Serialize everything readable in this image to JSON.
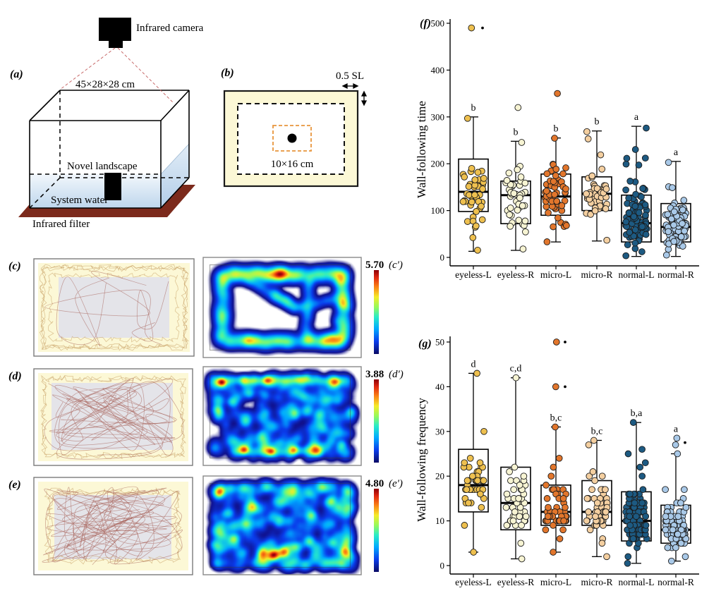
{
  "panel_a": {
    "label": "(a)",
    "camera_label": "Infrared camera",
    "tank_dimensions": "45×28×28 cm",
    "landscape_label": "Novel landscape",
    "water_label": "System water",
    "filter_label": "Infrared filter"
  },
  "panel_b": {
    "label": "(b)",
    "wall_margin_label": "0.5 SL",
    "center_zone_label": "10×16 cm"
  },
  "trajectory_panels": [
    {
      "label": "(c)",
      "pattern": "perimeter",
      "seed": 101
    },
    {
      "label": "(d)",
      "pattern": "full",
      "seed": 208
    },
    {
      "label": "(e)",
      "pattern": "full",
      "seed": 305
    }
  ],
  "heatmap_panels": [
    {
      "label": "(c')",
      "max_value": "5.70",
      "pattern": "perimeter",
      "seed": 11
    },
    {
      "label": "(d')",
      "max_value": "3.88",
      "pattern": "scatter-top",
      "seed": 22
    },
    {
      "label": "(e')",
      "max_value": "4.80",
      "pattern": "scatter-bottom",
      "seed": 33
    }
  ],
  "colors": {
    "cream": "#fcf8d6",
    "zone_gray": "#e4e4e9",
    "filter_maroon": "#7c2a1c",
    "trace_tan": "#c49a5f",
    "trace_red": "#a05248",
    "camera_line_red": "#c25b5b",
    "orange_dash": "#e8953c"
  },
  "chart_data": [
    {
      "type": "boxplot-scatter",
      "panel_label": "(f)",
      "ylabel": "Wall-following time",
      "ylim": [
        0,
        500
      ],
      "yticks": [
        0,
        100,
        200,
        300,
        400,
        500
      ],
      "categories": [
        "eyeless-L",
        "eyeless-R",
        "micro-L",
        "micro-R",
        "normal-L",
        "normal-R"
      ],
      "groups": [
        {
          "name": "eyeless-L",
          "color": "#eec04f",
          "letter": "b",
          "q1": 98,
          "median": 140,
          "q3": 210,
          "whisker_low": 13,
          "whisker_high": 300,
          "n": 42,
          "outliers": [
            490
          ],
          "flagged_outliers": [
            490
          ]
        },
        {
          "name": "eyeless-R",
          "color": "#f7f4d3",
          "letter": "b",
          "q1": 72,
          "median": 133,
          "q3": 163,
          "whisker_low": 15,
          "whisker_high": 248,
          "n": 40,
          "outliers": [
            320
          ],
          "flagged_outliers": []
        },
        {
          "name": "micro-L",
          "color": "#e2762c",
          "letter": "b",
          "q1": 90,
          "median": 130,
          "q3": 178,
          "whisker_low": 33,
          "whisker_high": 255,
          "n": 55,
          "outliers": [
            350
          ],
          "flagged_outliers": []
        },
        {
          "name": "micro-R",
          "color": "#f4cfa0",
          "letter": "b",
          "q1": 100,
          "median": 136,
          "q3": 172,
          "whisker_low": 35,
          "whisker_high": 270,
          "n": 48,
          "outliers": [],
          "flagged_outliers": []
        },
        {
          "name": "normal-L",
          "color": "#1d5a82",
          "letter": "a",
          "q1": 33,
          "median": 73,
          "q3": 133,
          "whisker_low": 2,
          "whisker_high": 280,
          "n": 110,
          "outliers": [],
          "flagged_outliers": []
        },
        {
          "name": "normal-R",
          "color": "#a9c9e8",
          "letter": "a",
          "q1": 33,
          "median": 65,
          "q3": 115,
          "whisker_low": 2,
          "whisker_high": 205,
          "n": 100,
          "outliers": [],
          "flagged_outliers": []
        }
      ]
    },
    {
      "type": "boxplot-scatter",
      "panel_label": "(g)",
      "ylabel": "Wall-following frequency",
      "ylim": [
        0,
        50
      ],
      "yticks": [
        0,
        10,
        20,
        30,
        40,
        50
      ],
      "categories": [
        "eyeless-L",
        "eyeless-R",
        "micro-L",
        "micro-R",
        "normal-L",
        "normal-R"
      ],
      "groups": [
        {
          "name": "eyeless-L",
          "color": "#eec04f",
          "letter": "d",
          "q1": 12,
          "median": 18,
          "q3": 26,
          "whisker_low": 3,
          "whisker_high": 43,
          "n": 40,
          "outliers": [],
          "flagged_outliers": []
        },
        {
          "name": "eyeless-R",
          "color": "#f7f4d3",
          "letter": "c,d",
          "q1": 8,
          "median": 14,
          "q3": 22,
          "whisker_low": 1.5,
          "whisker_high": 42,
          "n": 40,
          "outliers": [],
          "flagged_outliers": []
        },
        {
          "name": "micro-L",
          "color": "#e2762c",
          "letter": "b,c",
          "q1": 9,
          "median": 12,
          "q3": 18,
          "whisker_low": 3,
          "whisker_high": 31,
          "n": 52,
          "outliers": [
            50,
            40
          ],
          "flagged_outliers": [
            50,
            40
          ]
        },
        {
          "name": "micro-R",
          "color": "#f4cfa0",
          "letter": "b,c",
          "q1": 9,
          "median": 12,
          "q3": 19,
          "whisker_low": 2,
          "whisker_high": 28,
          "n": 48,
          "outliers": [],
          "flagged_outliers": []
        },
        {
          "name": "normal-L",
          "color": "#1d5a82",
          "letter": "b,a",
          "q1": 5.5,
          "median": 10,
          "q3": 16.5,
          "whisker_low": 0.5,
          "whisker_high": 32,
          "n": 110,
          "outliers": [],
          "flagged_outliers": []
        },
        {
          "name": "normal-R",
          "color": "#a9c9e8",
          "letter": "a",
          "q1": 5,
          "median": 8,
          "q3": 13.5,
          "whisker_low": 1,
          "whisker_high": 25,
          "n": 100,
          "outliers": [
            27,
            28.5
          ],
          "flagged_outliers": [
            27.5
          ]
        }
      ]
    }
  ]
}
